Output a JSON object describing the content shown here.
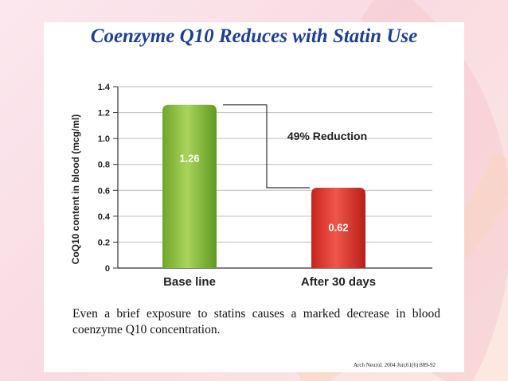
{
  "chart_data": {
    "type": "bar",
    "title": "Coenzyme Q10 Reduces with Statin Use",
    "categories": [
      "Base line",
      "After 30 days"
    ],
    "values": [
      1.26,
      0.62
    ],
    "data_labels": [
      "1.26",
      "0.62"
    ],
    "xlabel": "",
    "ylabel": "CoQ10 content in blood (mcg/ml)",
    "ylim": [
      0,
      1.4
    ],
    "yticks": [
      0,
      0.2,
      0.4,
      0.6,
      0.8,
      1.0,
      1.2,
      1.4
    ],
    "ytick_labels": [
      "0",
      "0.2",
      "0.4",
      "0.6",
      "0.8",
      "1.0",
      "1.2",
      "1.4"
    ],
    "grid": true,
    "annotation": "49% Reduction",
    "bar_colors": [
      "#8cc63f",
      "#e53a2f"
    ]
  },
  "caption": "Even a brief exposure to statins causes a marked decrease in blood coenzyme Q10 concentration.",
  "citation": "Arch Neurol. 2004 Jun;61(6):889-92"
}
